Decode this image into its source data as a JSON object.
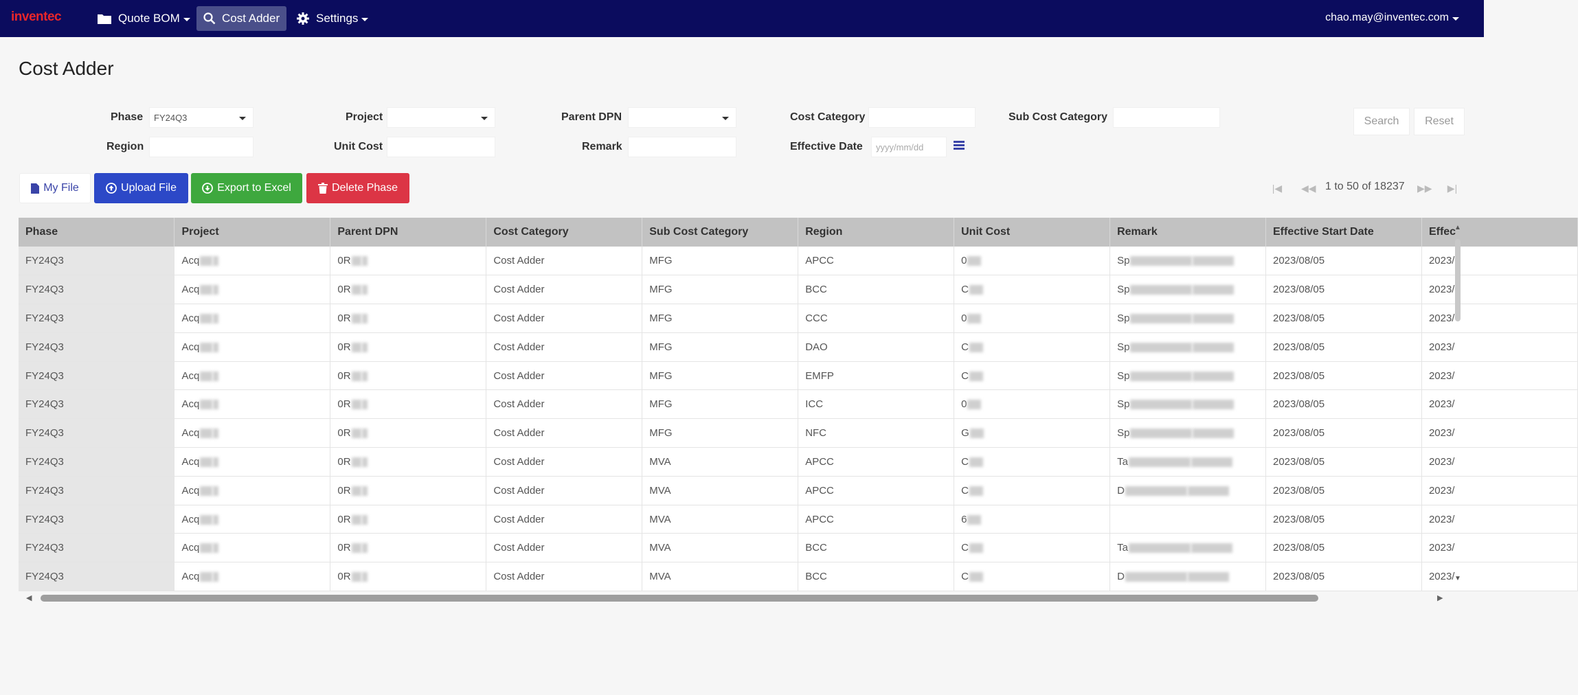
{
  "navbar": {
    "brand": "inventec",
    "items": [
      {
        "label": "Quote BOM",
        "icon": "folder-icon"
      },
      {
        "label": "Cost Adder",
        "icon": "search-icon",
        "active": true
      },
      {
        "label": "Settings",
        "icon": "gear-icon"
      }
    ],
    "user": "chao.may@inventec.com"
  },
  "page": {
    "title": "Cost Adder"
  },
  "filters": {
    "phase_label": "Phase",
    "phase_value": "FY24Q3",
    "project_label": "Project",
    "parent_dpn_label": "Parent DPN",
    "cost_category_label": "Cost Category",
    "sub_cost_category_label": "Sub Cost Category",
    "region_label": "Region",
    "unit_cost_label": "Unit Cost",
    "remark_label": "Remark",
    "effective_date_label": "Effective Date",
    "effective_date_placeholder": "yyyy/mm/dd",
    "search_label": "Search",
    "reset_label": "Reset"
  },
  "actions": {
    "my_file": "My File",
    "upload_file": "Upload File",
    "export_excel": "Export to Excel",
    "delete_phase": "Delete Phase"
  },
  "pager": {
    "text": "1 to 50 of 18237"
  },
  "table": {
    "columns": [
      "Phase",
      "Project",
      "Parent DPN",
      "Cost Category",
      "Sub Cost Category",
      "Region",
      "Unit Cost",
      "Remark",
      "Effective Start Date",
      "Effec"
    ],
    "rows": [
      {
        "phase": "FY24Q3",
        "project": "Acq",
        "dpn": "0R",
        "category": "Cost Adder",
        "sub": "MFG",
        "region": "APCC",
        "unit": "0",
        "remark": "Sp",
        "date": "2023/08/05",
        "eff": "2023/"
      },
      {
        "phase": "FY24Q3",
        "project": "Acq",
        "dpn": "0R",
        "category": "Cost Adder",
        "sub": "MFG",
        "region": "BCC",
        "unit": "C",
        "remark": "Sp",
        "date": "2023/08/05",
        "eff": "2023/"
      },
      {
        "phase": "FY24Q3",
        "project": "Acq",
        "dpn": "0R",
        "category": "Cost Adder",
        "sub": "MFG",
        "region": "CCC",
        "unit": "0",
        "remark": "Sp",
        "date": "2023/08/05",
        "eff": "2023/"
      },
      {
        "phase": "FY24Q3",
        "project": "Acq",
        "dpn": "0R",
        "category": "Cost Adder",
        "sub": "MFG",
        "region": "DAO",
        "unit": "C",
        "remark": "Sp",
        "date": "2023/08/05",
        "eff": "2023/"
      },
      {
        "phase": "FY24Q3",
        "project": "Acq",
        "dpn": "0R",
        "category": "Cost Adder",
        "sub": "MFG",
        "region": "EMFP",
        "unit": "C",
        "remark": "Sp",
        "date": "2023/08/05",
        "eff": "2023/"
      },
      {
        "phase": "FY24Q3",
        "project": "Acq",
        "dpn": "0R",
        "category": "Cost Adder",
        "sub": "MFG",
        "region": "ICC",
        "unit": "0",
        "remark": "Sp",
        "date": "2023/08/05",
        "eff": "2023/"
      },
      {
        "phase": "FY24Q3",
        "project": "Acq",
        "dpn": "0R",
        "category": "Cost Adder",
        "sub": "MFG",
        "region": "NFC",
        "unit": "G",
        "remark": "Sp",
        "date": "2023/08/05",
        "eff": "2023/"
      },
      {
        "phase": "FY24Q3",
        "project": "Acq",
        "dpn": "0R",
        "category": "Cost Adder",
        "sub": "MVA",
        "region": "APCC",
        "unit": "C",
        "remark": "Ta",
        "date": "2023/08/05",
        "eff": "2023/"
      },
      {
        "phase": "FY24Q3",
        "project": "Acq",
        "dpn": "0R",
        "category": "Cost Adder",
        "sub": "MVA",
        "region": "APCC",
        "unit": "C",
        "remark": "D",
        "date": "2023/08/05",
        "eff": "2023/"
      },
      {
        "phase": "FY24Q3",
        "project": "Acq",
        "dpn": "0R",
        "category": "Cost Adder",
        "sub": "MVA",
        "region": "APCC",
        "unit": "6",
        "remark": "",
        "date": "2023/08/05",
        "eff": "2023/"
      },
      {
        "phase": "FY24Q3",
        "project": "Acq",
        "dpn": "0R",
        "category": "Cost Adder",
        "sub": "MVA",
        "region": "BCC",
        "unit": "C",
        "remark": "Ta",
        "date": "2023/08/05",
        "eff": "2023/"
      },
      {
        "phase": "FY24Q3",
        "project": "Acq",
        "dpn": "0R",
        "category": "Cost Adder",
        "sub": "MVA",
        "region": "BCC",
        "unit": "C",
        "remark": "D",
        "date": "2023/08/05",
        "eff": "2023/"
      }
    ]
  }
}
